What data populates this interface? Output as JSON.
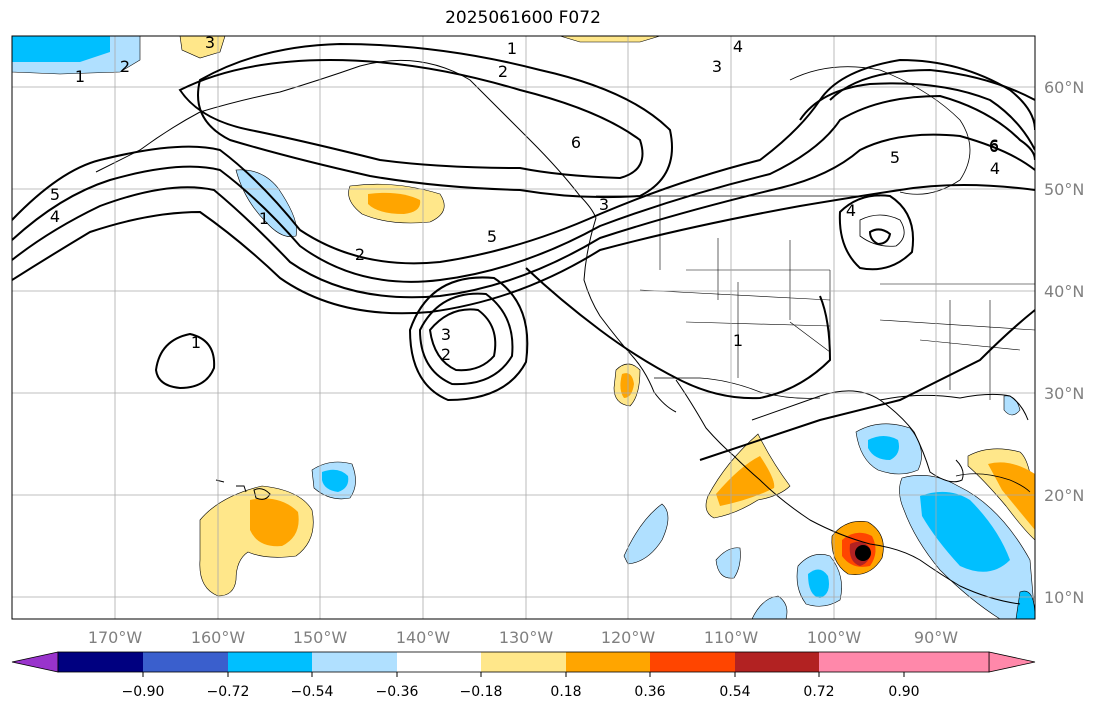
{
  "title": "2025061600 F072",
  "lat_labels": [
    "60°N",
    "50°N",
    "40°N",
    "30°N",
    "20°N",
    "10°N"
  ],
  "lon_labels": [
    "170°W",
    "160°W",
    "150°W",
    "140°W",
    "130°W",
    "120°W",
    "110°W",
    "100°W",
    "90°W"
  ],
  "contour_labels": [
    "1",
    "2",
    "3",
    "4",
    "5",
    "6",
    "1",
    "2",
    "3",
    "4",
    "5",
    "6",
    "1",
    "2",
    "3",
    "4",
    "1",
    "1",
    "2",
    "3",
    "4",
    "5",
    "6"
  ],
  "colorbar": {
    "colors": [
      "#9933cc",
      "#000080",
      "#3a5fcd",
      "#00bfff",
      "#b0e0ff",
      "#ffffff",
      "#ffe78a",
      "#ffa500",
      "#ff4500",
      "#b22222",
      "#ff88aa"
    ],
    "tick_labels": [
      "−0.90",
      "−0.72",
      "−0.54",
      "−0.36",
      "−0.18",
      "0.18",
      "0.36",
      "0.54",
      "0.72",
      "0.90"
    ]
  },
  "marker": {
    "label": "storm-center"
  }
}
